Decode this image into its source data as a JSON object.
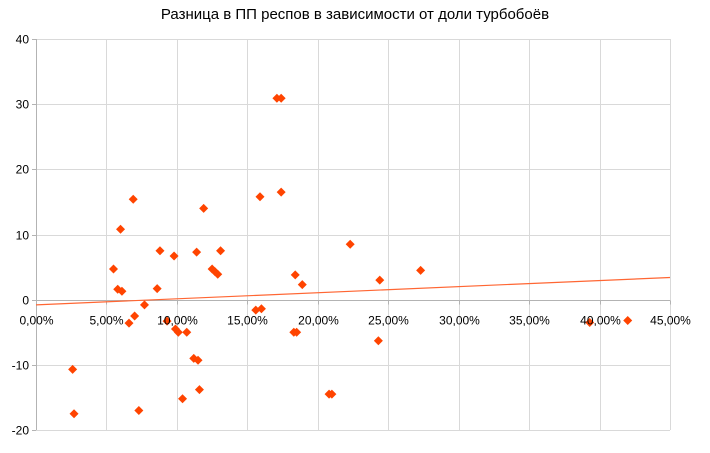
{
  "chart_data": {
    "type": "scatter",
    "title": "Разница в ПП респов в зависимости от доли турбобоёв",
    "xlabel": "",
    "ylabel": "",
    "xlim": [
      0,
      0.45
    ],
    "ylim": [
      -20,
      40
    ],
    "x_ticks": [
      0,
      0.05,
      0.1,
      0.15,
      0.2,
      0.25,
      0.3,
      0.35,
      0.4,
      0.45
    ],
    "x_tick_labels": [
      "0,00%",
      "5,00%",
      "10,00%",
      "15,00%",
      "20,00%",
      "25,00%",
      "30,00%",
      "35,00%",
      "40,00%",
      "45,00%"
    ],
    "y_ticks": [
      -20,
      -10,
      0,
      10,
      20,
      30,
      40
    ],
    "y_tick_labels": [
      "-20",
      "-10",
      "0",
      "10",
      "20",
      "30",
      "40"
    ],
    "grid": true,
    "legend": "none",
    "marker_color": "#ff4400",
    "trendline_color": "#ff6633",
    "gridline_color": "#d9d9d9",
    "points": [
      {
        "x": 0.026,
        "y": -10.7
      },
      {
        "x": 0.027,
        "y": -17.5
      },
      {
        "x": 0.055,
        "y": 4.7
      },
      {
        "x": 0.058,
        "y": 1.6
      },
      {
        "x": 0.06,
        "y": 10.8
      },
      {
        "x": 0.061,
        "y": 1.3
      },
      {
        "x": 0.066,
        "y": -3.6
      },
      {
        "x": 0.069,
        "y": 15.4
      },
      {
        "x": 0.07,
        "y": -2.5
      },
      {
        "x": 0.073,
        "y": -17.0
      },
      {
        "x": 0.077,
        "y": -0.8
      },
      {
        "x": 0.086,
        "y": 1.7
      },
      {
        "x": 0.088,
        "y": 7.5
      },
      {
        "x": 0.093,
        "y": -3.3
      },
      {
        "x": 0.098,
        "y": 6.7
      },
      {
        "x": 0.099,
        "y": -4.5
      },
      {
        "x": 0.101,
        "y": -5.0
      },
      {
        "x": 0.104,
        "y": -15.2
      },
      {
        "x": 0.107,
        "y": -5.0
      },
      {
        "x": 0.112,
        "y": -9.0
      },
      {
        "x": 0.114,
        "y": 7.3
      },
      {
        "x": 0.115,
        "y": -9.3
      },
      {
        "x": 0.116,
        "y": -13.8
      },
      {
        "x": 0.119,
        "y": 14.0
      },
      {
        "x": 0.125,
        "y": 4.7
      },
      {
        "x": 0.127,
        "y": 4.3
      },
      {
        "x": 0.129,
        "y": 3.9
      },
      {
        "x": 0.131,
        "y": 7.5
      },
      {
        "x": 0.156,
        "y": -1.6
      },
      {
        "x": 0.159,
        "y": 15.8
      },
      {
        "x": 0.16,
        "y": -1.4
      },
      {
        "x": 0.171,
        "y": 30.9
      },
      {
        "x": 0.174,
        "y": 30.9
      },
      {
        "x": 0.174,
        "y": 16.5
      },
      {
        "x": 0.183,
        "y": -5.0
      },
      {
        "x": 0.184,
        "y": 3.8
      },
      {
        "x": 0.185,
        "y": -5.0
      },
      {
        "x": 0.189,
        "y": 2.3
      },
      {
        "x": 0.208,
        "y": -14.5
      },
      {
        "x": 0.21,
        "y": -14.5
      },
      {
        "x": 0.223,
        "y": 8.5
      },
      {
        "x": 0.243,
        "y": -6.3
      },
      {
        "x": 0.244,
        "y": 3.0
      },
      {
        "x": 0.273,
        "y": 4.5
      },
      {
        "x": 0.393,
        "y": -3.5
      },
      {
        "x": 0.42,
        "y": -3.2
      }
    ],
    "trendline": {
      "x": [
        0,
        0.45
      ],
      "y": [
        -0.8,
        3.4
      ]
    }
  }
}
